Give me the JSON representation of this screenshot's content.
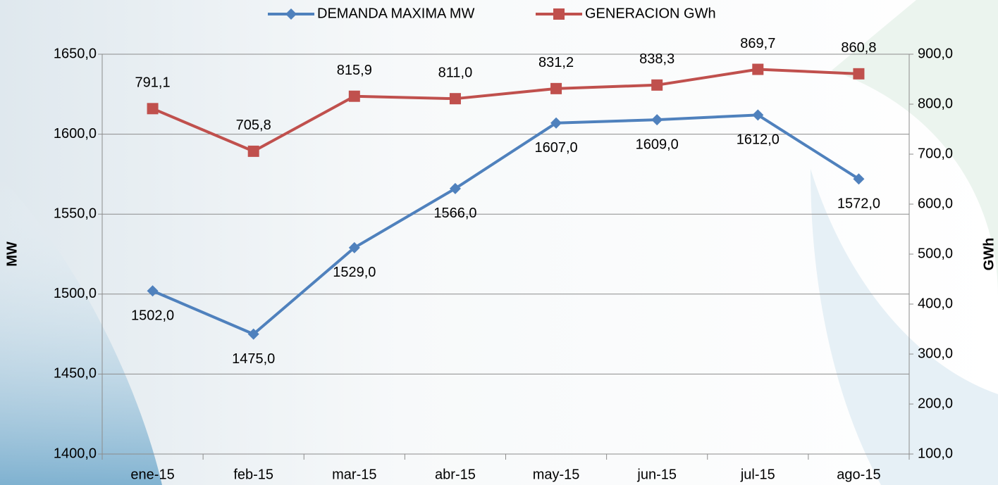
{
  "chart_data": {
    "type": "line",
    "categories": [
      "ene-15",
      "feb-15",
      "mar-15",
      "abr-15",
      "may-15",
      "jun-15",
      "jul-15",
      "ago-15"
    ],
    "series": [
      {
        "name": "DEMANDA MAXIMA MW",
        "color": "#4f81bd",
        "axis": "y",
        "values": [
          1502,
          1475,
          1529,
          1566,
          1607,
          1609,
          1612,
          1572
        ],
        "value_labels": [
          "1502,0",
          "1475,0",
          "1529,0",
          "1566,0",
          "1607,0",
          "1609,0",
          "1612,0",
          "1572,0"
        ]
      },
      {
        "name": "GENERACION  GWh",
        "color": "#c0504d",
        "axis": "y2",
        "values": [
          791.1,
          705.8,
          815.9,
          811.0,
          831.2,
          838.3,
          869.7,
          860.8
        ],
        "value_labels": [
          "791,1",
          "705,8",
          "815,9",
          "811,0",
          "831,2",
          "838,3",
          "869,7",
          "860,8"
        ]
      }
    ],
    "y_label": "MW",
    "y2_label": "GWh",
    "ylim": [
      1400,
      1650
    ],
    "yticks": [
      {
        "value": 1400,
        "label": "1400,0"
      },
      {
        "value": 1450,
        "label": "1450,0"
      },
      {
        "value": 1500,
        "label": "1500,0"
      },
      {
        "value": 1550,
        "label": "1550,0"
      },
      {
        "value": 1600,
        "label": "1600,0"
      },
      {
        "value": 1650,
        "label": "1650,0"
      }
    ],
    "y2lim": [
      100,
      900
    ],
    "y2ticks": [
      {
        "value": 100,
        "label": "100,0"
      },
      {
        "value": 200,
        "label": "200,0"
      },
      {
        "value": 300,
        "label": "300,0"
      },
      {
        "value": 400,
        "label": "400,0"
      },
      {
        "value": 500,
        "label": "500,0"
      },
      {
        "value": 600,
        "label": "600,0"
      },
      {
        "value": 700,
        "label": "700,0"
      },
      {
        "value": 800,
        "label": "800,0"
      },
      {
        "value": 900,
        "label": "900,0"
      }
    ],
    "grid": true,
    "legend": "top"
  }
}
